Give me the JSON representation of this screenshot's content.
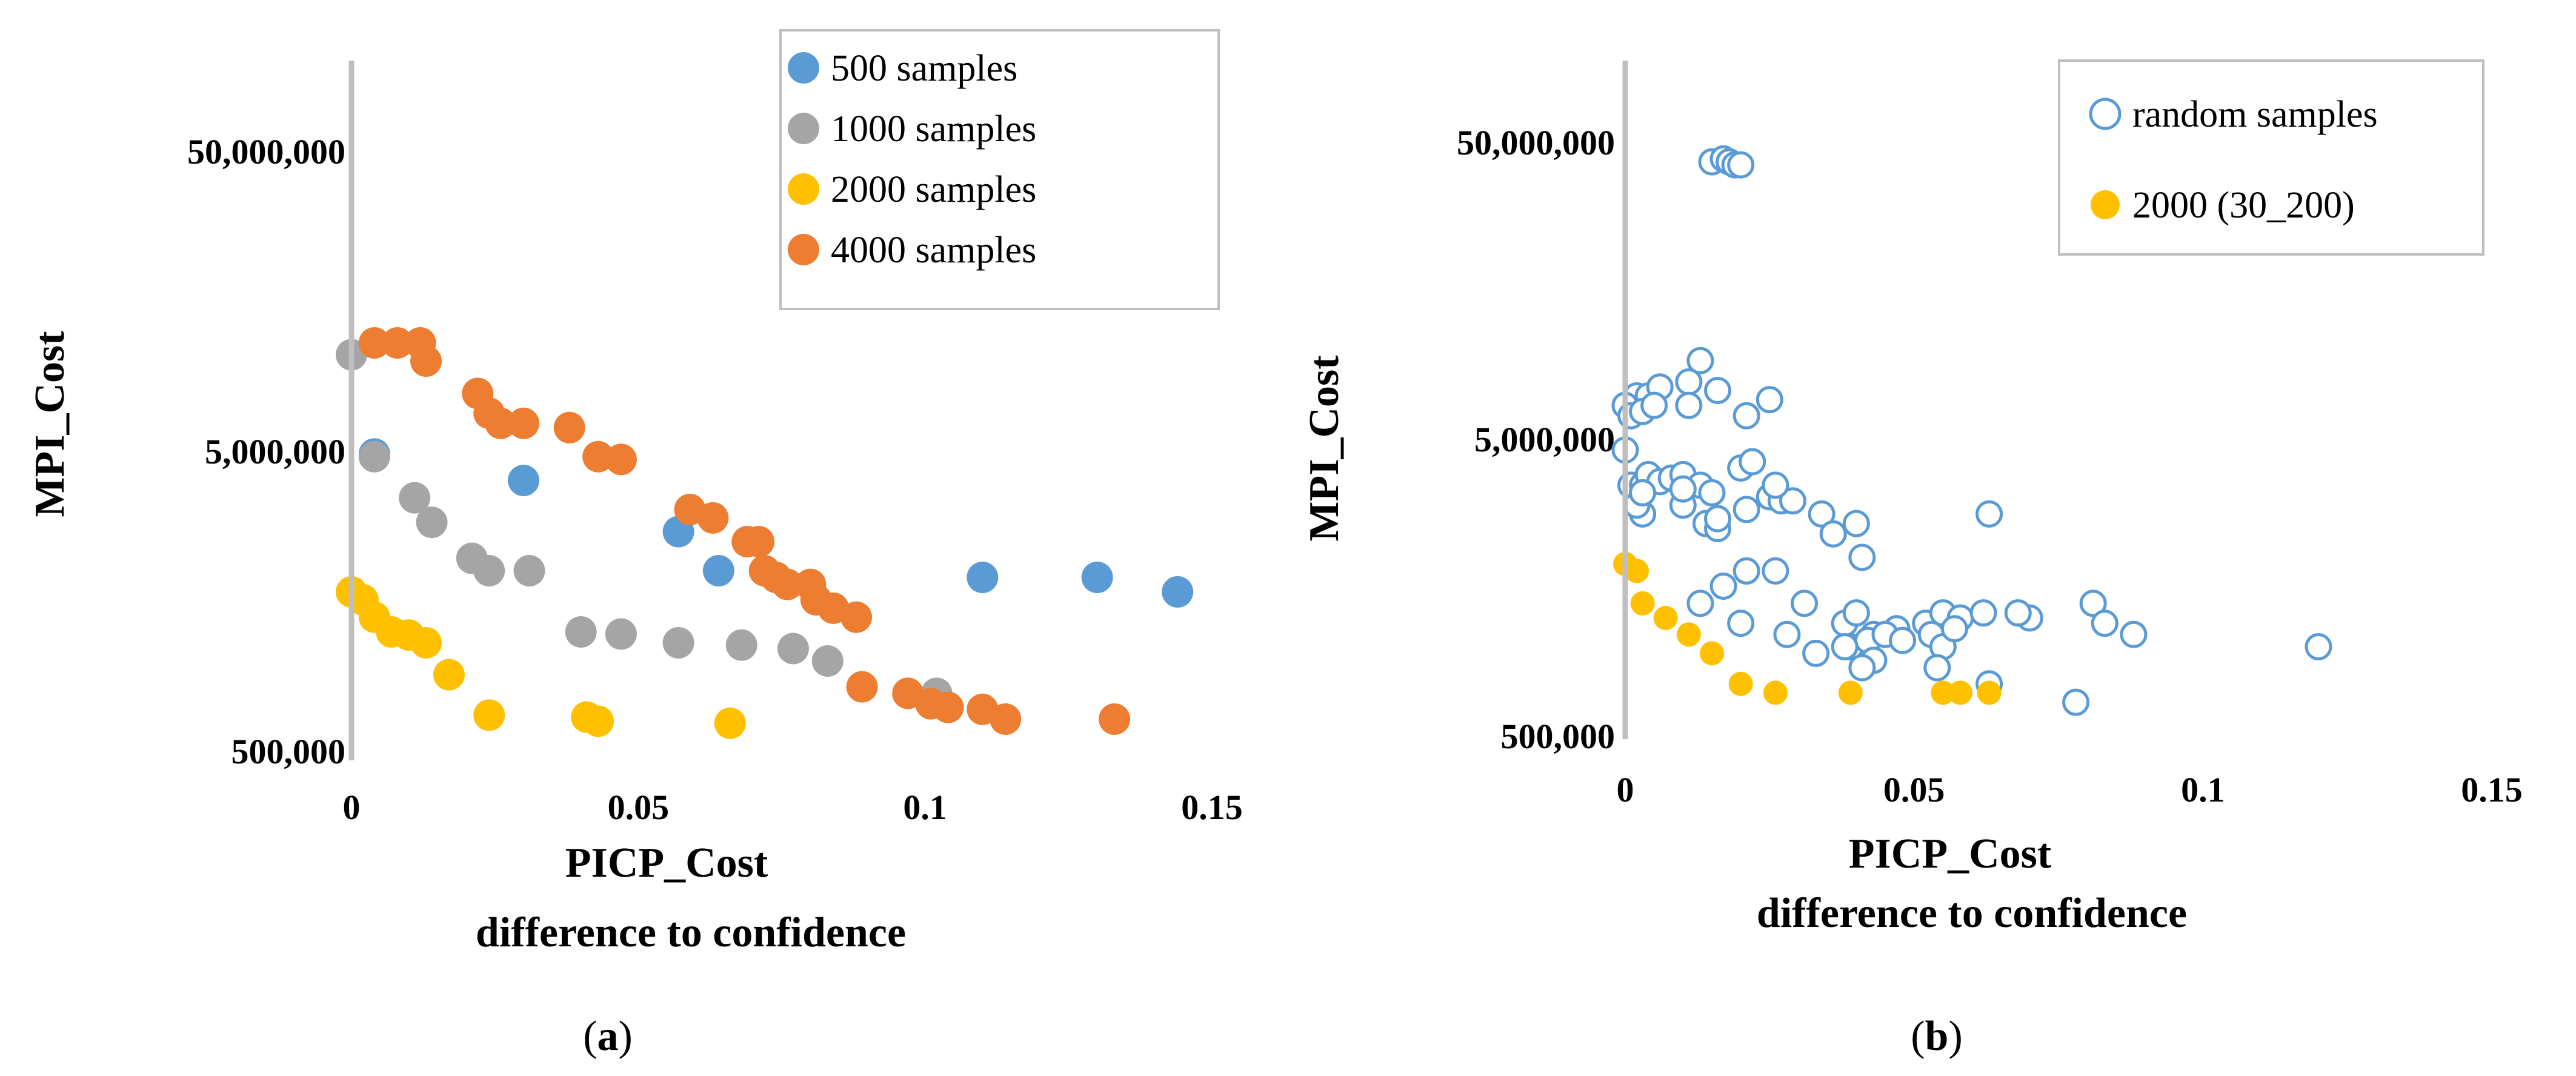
{
  "chart_data": [
    {
      "type": "scatter",
      "panel": "(a)",
      "panel_letter": "a",
      "xlabel": "PICP_Cost",
      "xlabel2": "difference to confidence",
      "ylabel": "MPI_Cost",
      "xlim": [
        0,
        0.15
      ],
      "ylim": [
        500000,
        100000000
      ],
      "yscale": "log",
      "xticks": [
        0,
        0.05,
        0.1,
        0.15
      ],
      "xtick_labels": [
        "0",
        "0.05",
        "0.1",
        "0.15"
      ],
      "yticks": [
        500000,
        5000000,
        50000000
      ],
      "ytick_labels": [
        "500,000",
        "5,000,000",
        "50,000,000"
      ],
      "legend_position": "top-right",
      "series": [
        {
          "name": "500 samples",
          "color": "#5b9bd5",
          "marker": "filled",
          "x": [
            0.004,
            0.03,
            0.057,
            0.064,
            0.11,
            0.13,
            0.144
          ],
          "y": [
            4900000,
            4000000,
            2700000,
            2000000,
            1900000,
            1900000,
            1700000
          ]
        },
        {
          "name": "1000 samples",
          "color": "#a5a5a5",
          "marker": "filled",
          "x": [
            0.0,
            0.004,
            0.011,
            0.014,
            0.021,
            0.024,
            0.031,
            0.04,
            0.047,
            0.057,
            0.068,
            0.077,
            0.083,
            0.102
          ],
          "y": [
            10500000,
            4800000,
            3500000,
            2900000,
            2200000,
            2000000,
            2000000,
            1250000,
            1230000,
            1150000,
            1130000,
            1100000,
            1000000,
            780000
          ]
        },
        {
          "name": "2000 samples",
          "color": "#ffc000",
          "marker": "filled",
          "x": [
            0.0,
            0.002,
            0.004,
            0.007,
            0.01,
            0.013,
            0.017,
            0.024,
            0.041,
            0.043,
            0.066
          ],
          "y": [
            1700000,
            1600000,
            1400000,
            1250000,
            1220000,
            1150000,
            900000,
            660000,
            650000,
            630000,
            620000
          ]
        },
        {
          "name": "4000 samples",
          "color": "#ed7d31",
          "marker": "filled",
          "x": [
            0.004,
            0.008,
            0.012,
            0.013,
            0.022,
            0.024,
            0.026,
            0.03,
            0.038,
            0.043,
            0.047,
            0.059,
            0.063,
            0.069,
            0.071,
            0.072,
            0.074,
            0.076,
            0.08,
            0.081,
            0.084,
            0.088,
            0.089,
            0.097,
            0.101,
            0.104,
            0.11,
            0.114,
            0.133
          ],
          "y": [
            11500000,
            11500000,
            11500000,
            10000000,
            7800000,
            6700000,
            6200000,
            6200000,
            6000000,
            4800000,
            4700000,
            3200000,
            3000000,
            2500000,
            2500000,
            2000000,
            1900000,
            1800000,
            1800000,
            1600000,
            1500000,
            1400000,
            820000,
            780000,
            720000,
            700000,
            690000,
            640000,
            640000
          ]
        }
      ]
    },
    {
      "type": "scatter",
      "panel": "(b)",
      "panel_letter": "b",
      "xlabel": "PICP_Cost",
      "xlabel2": "difference to confidence",
      "ylabel": "MPI_Cost",
      "xlim": [
        0,
        0.15
      ],
      "ylim": [
        500000,
        100000000
      ],
      "yscale": "log",
      "xticks": [
        0,
        0.05,
        0.1,
        0.15
      ],
      "xtick_labels": [
        "0",
        "0.05",
        "0.1",
        "0.15"
      ],
      "yticks": [
        500000,
        5000000,
        50000000
      ],
      "ytick_labels": [
        "500,000",
        "5,000,000",
        "50,000,000"
      ],
      "legend_position": "top-right",
      "series": [
        {
          "name": "random samples",
          "color": "#5b9bd5",
          "marker": "open",
          "x": [
            0.015,
            0.017,
            0.018,
            0.019,
            0.02,
            0.013,
            0.0,
            0.002,
            0.004,
            0.006,
            0.011,
            0.016,
            0.025,
            0.0,
            0.001,
            0.003,
            0.005,
            0.011,
            0.021,
            0.0,
            0.002,
            0.001,
            0.003,
            0.004,
            0.006,
            0.008,
            0.01,
            0.013,
            0.015,
            0.02,
            0.022,
            0.025,
            0.027,
            0.029,
            0.003,
            0.01,
            0.014,
            0.016,
            0.034,
            0.036,
            0.04,
            0.063,
            0.002,
            0.003,
            0.01,
            0.016,
            0.021,
            0.026,
            0.041,
            0.013,
            0.021,
            0.026,
            0.031,
            0.038,
            0.04,
            0.043,
            0.047,
            0.052,
            0.055,
            0.058,
            0.062,
            0.07,
            0.068,
            0.081,
            0.083,
            0.088,
            0.12,
            0.017,
            0.02,
            0.028,
            0.033,
            0.039,
            0.042,
            0.045,
            0.048,
            0.053,
            0.055,
            0.057,
            0.038,
            0.043,
            0.041,
            0.054,
            0.063,
            0.078
          ],
          "y": [
            43000000,
            44000000,
            43000000,
            42000000,
            42000000,
            9200000,
            6500000,
            7000000,
            7000000,
            7500000,
            7800000,
            7300000,
            6800000,
            6500000,
            6000000,
            6200000,
            6500000,
            6500000,
            6000000,
            4600000,
            3500000,
            3500000,
            3500000,
            3800000,
            3600000,
            3700000,
            3800000,
            3500000,
            3300000,
            4000000,
            4200000,
            3200000,
            3100000,
            3100000,
            2800000,
            3000000,
            2600000,
            2500000,
            2800000,
            2400000,
            2600000,
            2800000,
            3000000,
            3300000,
            3400000,
            2700000,
            2900000,
            3500000,
            2000000,
            1400000,
            1800000,
            1800000,
            1400000,
            1200000,
            1300000,
            1100000,
            1150000,
            1200000,
            1300000,
            1250000,
            1300000,
            1250000,
            1300000,
            1400000,
            1200000,
            1100000,
            1000000,
            1600000,
            1200000,
            1100000,
            950000,
            1000000,
            1050000,
            1100000,
            1050000,
            1100000,
            1000000,
            1150000,
            1000000,
            900000,
            850000,
            850000,
            750000,
            650000
          ]
        },
        {
          "name": "2000 (30_200)",
          "color": "#ffc000",
          "marker": "filled",
          "x": [
            0.0,
            0.002,
            0.003,
            0.007,
            0.011,
            0.015,
            0.02,
            0.026,
            0.039,
            0.055,
            0.058,
            0.063
          ],
          "y": [
            1900000,
            1800000,
            1400000,
            1250000,
            1100000,
            950000,
            750000,
            700000,
            700000,
            700000,
            700000,
            700000
          ]
        }
      ]
    }
  ]
}
